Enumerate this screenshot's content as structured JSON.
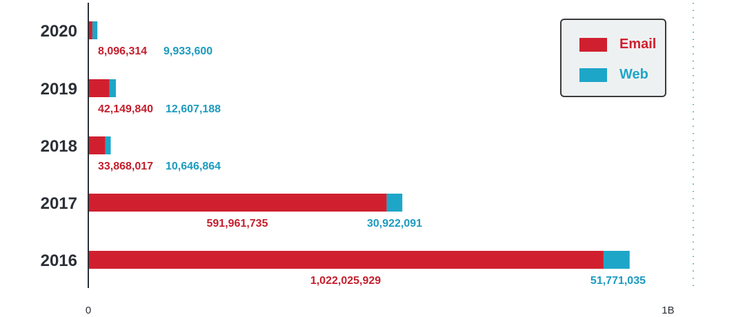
{
  "chart_data": {
    "type": "bar",
    "orientation": "horizontal",
    "stacked": true,
    "categories": [
      "2020",
      "2019",
      "2018",
      "2017",
      "2016"
    ],
    "series": [
      {
        "name": "Email",
        "color": "#d0202f",
        "values": [
          8096314,
          42149840,
          33868017,
          591961735,
          1022025929
        ]
      },
      {
        "name": "Web",
        "color": "#1ea6c8",
        "values": [
          9933600,
          12607188,
          10646864,
          30922091,
          51771035
        ]
      }
    ],
    "data_labels": {
      "Email": [
        "8,096,314",
        "42,149,840",
        "33,868,017",
        "591,961,735",
        "1,022,025,929"
      ],
      "Web": [
        "9,933,600",
        "12,607,188",
        "10,646,864",
        "30,922,091",
        "51,771,035"
      ]
    },
    "xlim": [
      0,
      1200000000
    ],
    "x_ticks": [
      {
        "value": 0,
        "label": "0"
      },
      {
        "value": 1150000000,
        "label": "1B"
      }
    ],
    "legend_position": "top-right",
    "grid": false
  }
}
